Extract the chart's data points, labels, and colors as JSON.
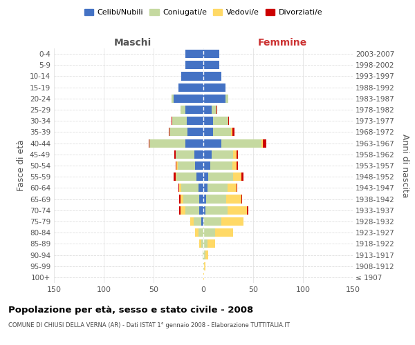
{
  "age_groups": [
    "100+",
    "95-99",
    "90-94",
    "85-89",
    "80-84",
    "75-79",
    "70-74",
    "65-69",
    "60-64",
    "55-59",
    "50-54",
    "45-49",
    "40-44",
    "35-39",
    "30-34",
    "25-29",
    "20-24",
    "15-19",
    "10-14",
    "5-9",
    "0-4"
  ],
  "birth_years": [
    "≤ 1907",
    "1908-1912",
    "1913-1917",
    "1918-1922",
    "1923-1927",
    "1928-1932",
    "1933-1937",
    "1938-1942",
    "1943-1947",
    "1948-1952",
    "1953-1957",
    "1958-1962",
    "1963-1967",
    "1968-1972",
    "1973-1977",
    "1978-1982",
    "1983-1987",
    "1988-1992",
    "1993-1997",
    "1998-2002",
    "2003-2007"
  ],
  "colors": {
    "celibi": "#4472c4",
    "coniugati": "#c5d9a0",
    "vedovi": "#ffd966",
    "divorziati": "#cc0000"
  },
  "maschi": {
    "celibi": [
      0,
      0,
      0,
      0,
      0,
      2,
      4,
      4,
      5,
      7,
      8,
      9,
      18,
      16,
      17,
      18,
      30,
      25,
      22,
      18,
      18
    ],
    "coniugati": [
      0,
      0,
      1,
      2,
      5,
      8,
      14,
      16,
      17,
      20,
      18,
      19,
      36,
      18,
      14,
      5,
      2,
      0,
      0,
      0,
      0
    ],
    "vedovi": [
      0,
      0,
      0,
      2,
      3,
      3,
      5,
      3,
      2,
      1,
      1,
      0,
      0,
      0,
      0,
      0,
      0,
      0,
      0,
      0,
      0
    ],
    "divorziati": [
      0,
      0,
      0,
      0,
      0,
      0,
      1,
      1,
      1,
      2,
      1,
      1,
      1,
      1,
      1,
      0,
      0,
      0,
      0,
      0,
      0
    ]
  },
  "femmine": {
    "celibi": [
      0,
      0,
      0,
      0,
      0,
      0,
      2,
      3,
      4,
      5,
      7,
      8,
      18,
      10,
      10,
      8,
      22,
      22,
      18,
      16,
      16
    ],
    "coniugati": [
      0,
      1,
      2,
      4,
      12,
      18,
      22,
      20,
      20,
      25,
      22,
      22,
      40,
      18,
      15,
      5,
      3,
      0,
      0,
      0,
      0
    ],
    "vedovi": [
      1,
      1,
      3,
      8,
      18,
      22,
      20,
      15,
      9,
      8,
      4,
      3,
      2,
      1,
      0,
      0,
      0,
      0,
      0,
      0,
      0
    ],
    "divorziati": [
      0,
      0,
      0,
      0,
      0,
      0,
      1,
      1,
      1,
      2,
      2,
      2,
      3,
      2,
      1,
      1,
      0,
      0,
      0,
      0,
      0
    ]
  },
  "xlim": 150,
  "xlabel_left": "Maschi",
  "xlabel_right": "Femmine",
  "ylabel_left": "Fasce di età",
  "ylabel_right": "Anni di nascita",
  "title": "Popolazione per età, sesso e stato civile - 2008",
  "subtitle": "COMUNE DI CHIUSI DELLA VERNA (AR) - Dati ISTAT 1° gennaio 2008 - Elaborazione TUTTITALIA.IT",
  "legend_labels": [
    "Celibi/Nubili",
    "Coniugati/e",
    "Vedovi/e",
    "Divorziati/e"
  ],
  "background_color": "#ffffff",
  "grid_color": "#cccccc",
  "maschi_color": "#555555",
  "femmine_color": "#cc3333"
}
